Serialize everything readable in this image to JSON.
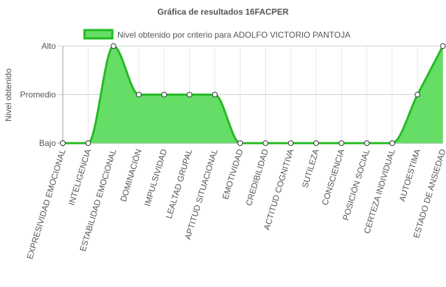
{
  "chart_data": {
    "type": "area",
    "title": "Gráfica de resultados 16FACPER",
    "ylabel": "Nivel obtenido",
    "xlabel": "",
    "y_categories": [
      "Bajo",
      "Promedio",
      "Alto"
    ],
    "ylim": [
      0,
      2
    ],
    "categories": [
      "EXPRESIVIDAD EMOCIONAL",
      "INTELIGENCIA",
      "ESTABILIDAD EMOCIONAL",
      "DOMINACIÓN",
      "IMPULSIVIDAD",
      "LEALTAD GRUPAL",
      "APTITUD SITUACIONAL",
      "EMOTIVIDAD",
      "CREDIBILIDAD",
      "ACTITUD COGNITIVA",
      "SUTILEZA",
      "CONSCIENCIA",
      "POSICIÓN SOCIAL",
      "CERTEZA INDIVIDUAL",
      "AUTOESTIMA",
      "ESTADO DE ANSIEDAD"
    ],
    "series": [
      {
        "name": "Nivel obtenido por criterio para ADOLFO VICTORIO PANTOJA",
        "values": [
          0,
          0,
          2,
          1,
          1,
          1,
          1,
          0,
          0,
          0,
          0,
          0,
          0,
          0,
          1,
          2
        ],
        "fill_color": "#66dd66",
        "line_color": "#22bb22"
      }
    ],
    "grid": true,
    "legend": "top-center"
  }
}
